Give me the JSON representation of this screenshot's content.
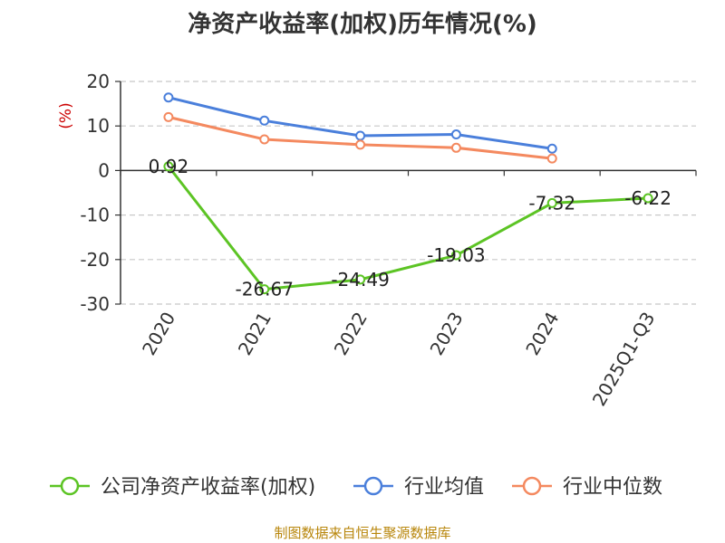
{
  "title": "净资产收益率(加权)历年情况(%)",
  "source": "制图数据来自恒生聚源数据库",
  "chart_data": {
    "type": "line",
    "title": "净资产收益率(加权)历年情况(%)",
    "ylabel": "(%)",
    "categories": [
      "2020",
      "2021",
      "2022",
      "2023",
      "2024",
      "2025Q1-Q3"
    ],
    "ylim": [
      -30,
      20
    ],
    "yticks": [
      20,
      10,
      0,
      -10,
      -20,
      -30
    ],
    "grid": true,
    "legend": "bottom",
    "series": [
      {
        "name": "公司净资产收益率(加权)",
        "color": "#5cc424",
        "values": [
          0.92,
          -26.67,
          -24.49,
          -19.03,
          -7.32,
          -6.22
        ],
        "labels": [
          "0.92",
          "-26.67",
          "-24.49",
          "-19.03",
          "-7.32",
          "-6.22"
        ]
      },
      {
        "name": "行业均值",
        "color": "#4a7fdb",
        "values": [
          16.4,
          11.2,
          7.8,
          8.1,
          4.9,
          null
        ]
      },
      {
        "name": "行业中位数",
        "color": "#f4895f",
        "values": [
          12.0,
          7.0,
          5.8,
          5.1,
          2.7,
          null
        ]
      }
    ]
  }
}
